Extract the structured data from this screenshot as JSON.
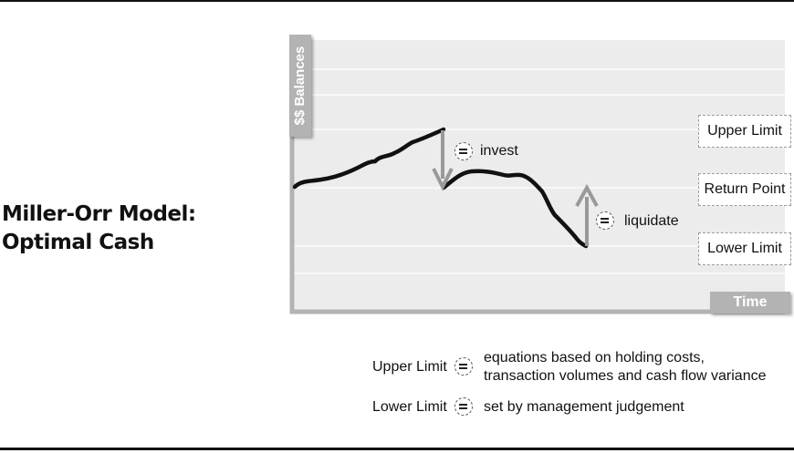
{
  "title": {
    "line1": "Miller-Orr Model:",
    "line2": "Optimal Cash"
  },
  "axes": {
    "y_label": "$$ Balances",
    "x_label": "Time"
  },
  "levels": {
    "upper": "Upper Limit",
    "return": "Return Point",
    "lower": "Lower Limit"
  },
  "annotations": {
    "invest": "invest",
    "liquidate": "liquidate"
  },
  "legend": [
    {
      "term": "Upper Limit",
      "definition_lines": [
        "equations based on holding costs,",
        "transaction volumes and cash flow variance"
      ]
    },
    {
      "term": "Lower Limit",
      "definition_lines": [
        "set by management judgement"
      ]
    }
  ],
  "icons": {
    "equals": "equals-circle-icon",
    "down": "down-arrow-icon",
    "up": "up-arrow-icon"
  },
  "colors": {
    "panel": "#ececec",
    "axis": "#b3b3b3",
    "line": "#111111",
    "arrow": "#999999"
  }
}
